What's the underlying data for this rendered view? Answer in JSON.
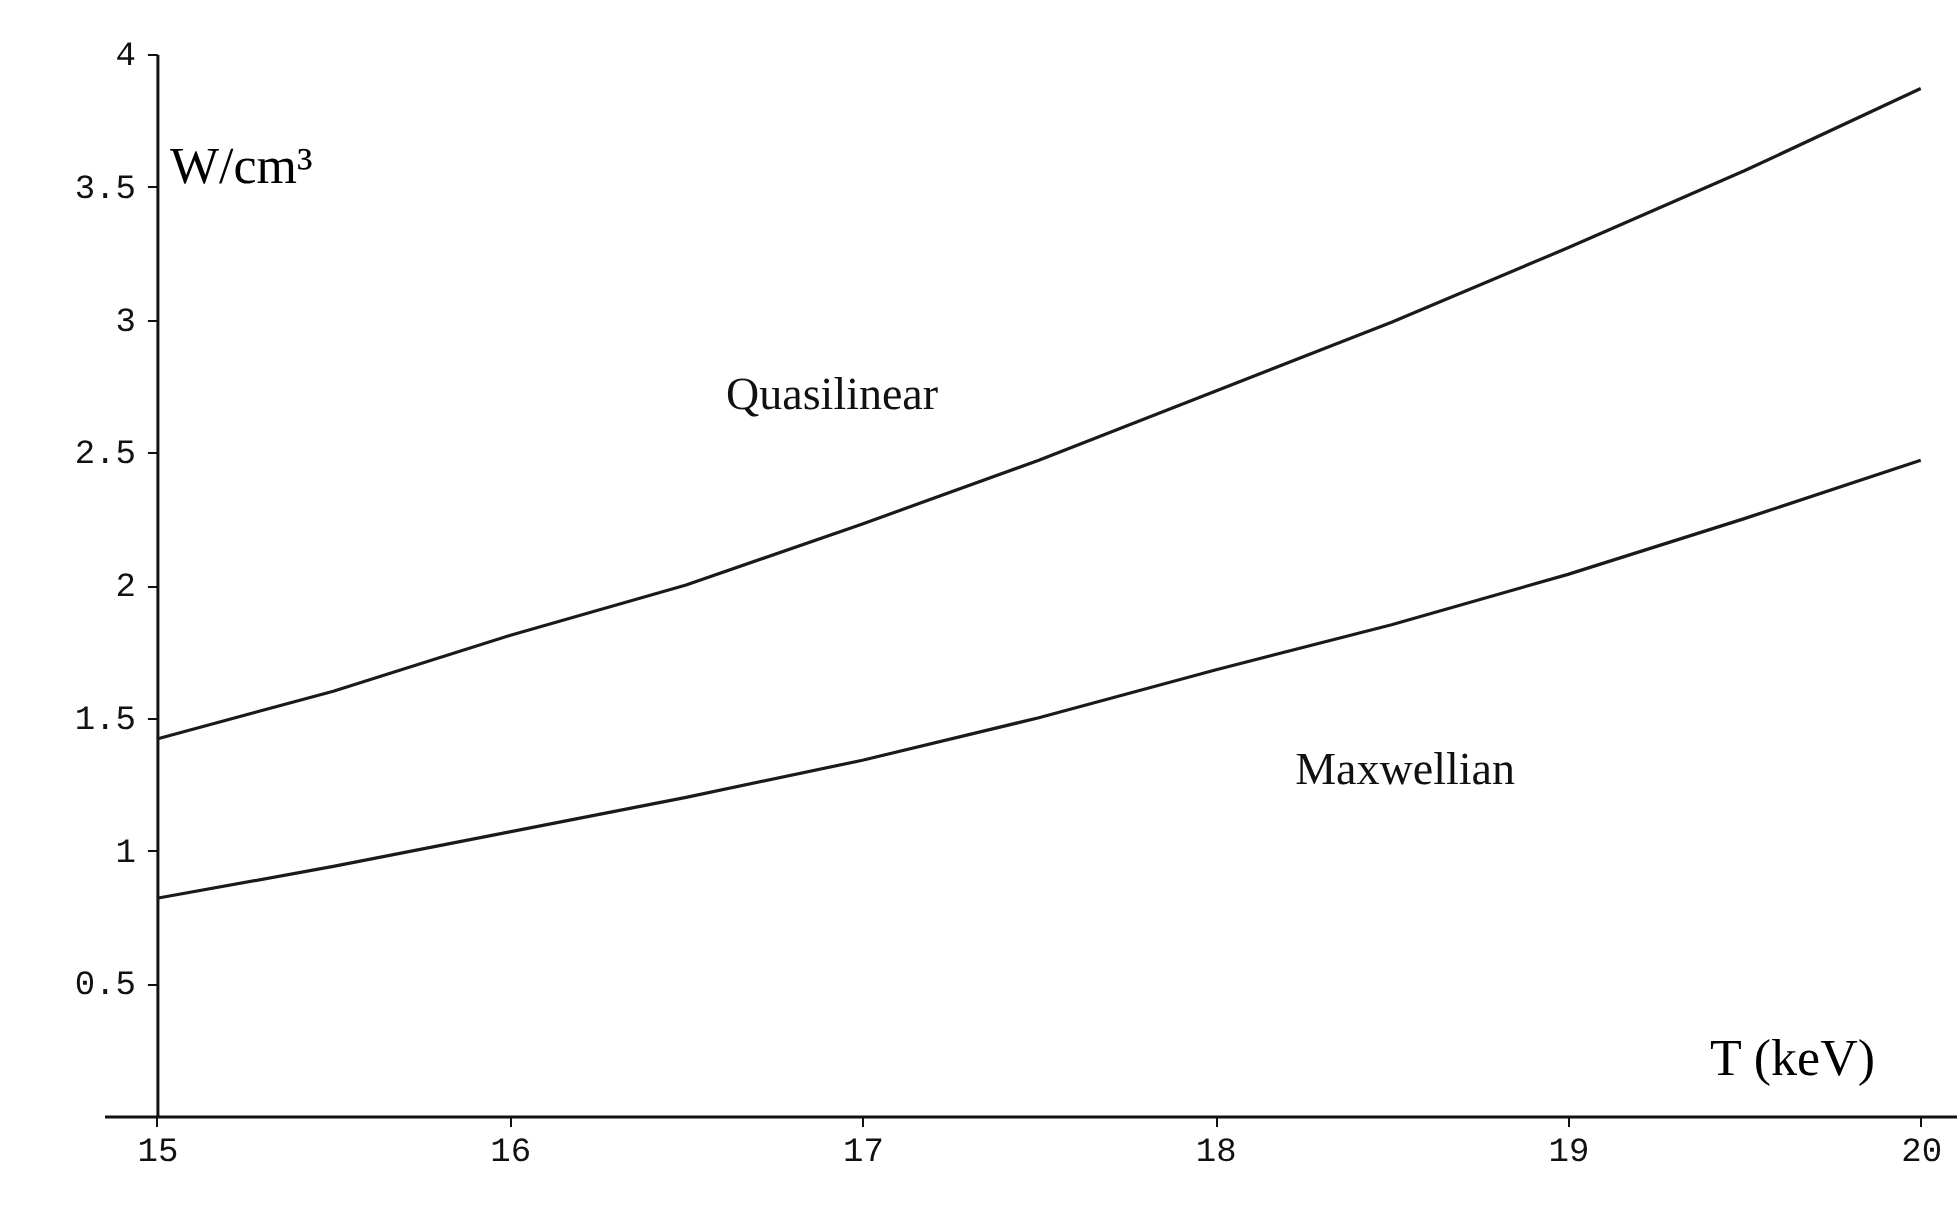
{
  "chart_data": {
    "type": "line",
    "xlabel": "T (keV)",
    "ylabel": "W/cm³",
    "x": [
      15,
      15.5,
      16,
      16.5,
      17,
      17.5,
      18,
      18.5,
      19,
      19.5,
      20
    ],
    "series": [
      {
        "name": "Quasilinear",
        "color": "#1a1a1a",
        "values": [
          1.42,
          1.6,
          1.81,
          2.0,
          2.23,
          2.47,
          2.73,
          2.99,
          3.27,
          3.56,
          3.87
        ]
      },
      {
        "name": "Maxwellian",
        "color": "#1a1a1a",
        "values": [
          0.82,
          0.94,
          1.07,
          1.2,
          1.34,
          1.5,
          1.68,
          1.85,
          2.04,
          2.25,
          2.47
        ]
      }
    ],
    "xlim": [
      14.85,
      20.1
    ],
    "ylim": [
      0,
      4
    ],
    "xticks": [
      15,
      16,
      17,
      18,
      19,
      20
    ],
    "yticks": [
      0.5,
      1,
      1.5,
      2,
      2.5,
      3,
      3.5,
      4
    ],
    "marker": "none",
    "line_style": "solid"
  }
}
